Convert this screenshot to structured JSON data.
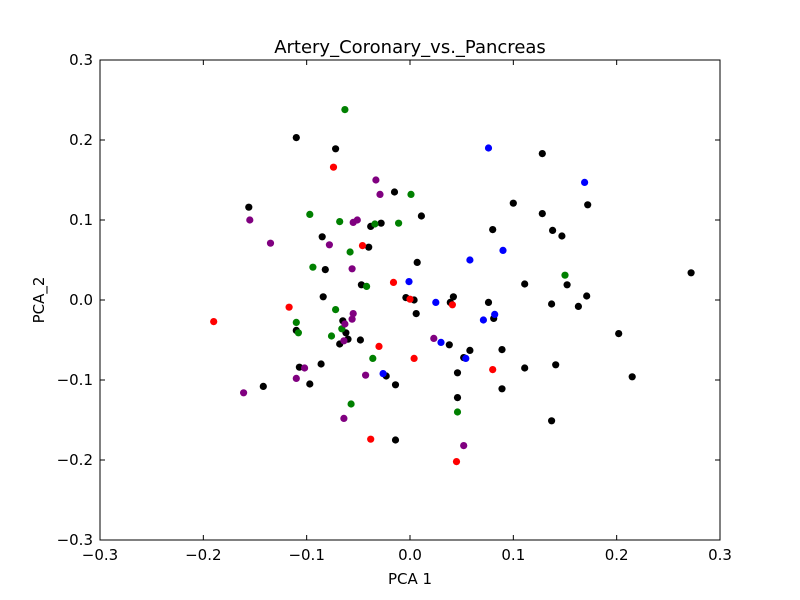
{
  "chart_data": {
    "type": "scatter",
    "title": "Artery_Coronary_vs._Pancreas",
    "xlabel": "PCA 1",
    "ylabel": "PCA_2",
    "xlim": [
      -0.3,
      0.3
    ],
    "ylim": [
      -0.3,
      0.3
    ],
    "xticks": [
      "−0.3",
      "−0.2",
      "−0.1",
      "0.0",
      "0.1",
      "0.2",
      "0.3"
    ],
    "yticks": [
      "−0.3",
      "−0.2",
      "−0.1",
      "0.0",
      "0.1",
      "0.2",
      "0.3"
    ],
    "grid": false,
    "series": [
      {
        "color": "#000000",
        "points": [
          [
            -0.11,
            0.203
          ],
          [
            -0.072,
            0.189
          ],
          [
            -0.156,
            0.116
          ],
          [
            -0.015,
            0.135
          ],
          [
            -0.038,
            0.092
          ],
          [
            -0.028,
            0.096
          ],
          [
            0.011,
            0.105
          ],
          [
            -0.085,
            0.079
          ],
          [
            -0.04,
            0.066
          ],
          [
            0.007,
            0.047
          ],
          [
            -0.082,
            0.038
          ],
          [
            -0.047,
            0.019
          ],
          [
            -0.084,
            0.004
          ],
          [
            -0.004,
            0.003
          ],
          [
            0.004,
            0.0
          ],
          [
            -0.065,
            -0.026
          ],
          [
            -0.11,
            -0.038
          ],
          [
            -0.062,
            -0.041
          ],
          [
            -0.06,
            -0.049
          ],
          [
            -0.048,
            -0.05
          ],
          [
            -0.068,
            -0.055
          ],
          [
            -0.107,
            -0.084
          ],
          [
            -0.086,
            -0.08
          ],
          [
            -0.097,
            -0.105
          ],
          [
            -0.142,
            -0.108
          ],
          [
            -0.023,
            -0.095
          ],
          [
            -0.014,
            -0.106
          ],
          [
            0.042,
            0.004
          ],
          [
            0.039,
            -0.003
          ],
          [
            0.006,
            -0.017
          ],
          [
            0.038,
            -0.056
          ],
          [
            0.058,
            -0.063
          ],
          [
            0.052,
            -0.072
          ],
          [
            0.046,
            -0.091
          ],
          [
            0.046,
            -0.122
          ],
          [
            -0.014,
            -0.175
          ],
          [
            0.128,
            0.183
          ],
          [
            0.1,
            0.121
          ],
          [
            0.128,
            0.108
          ],
          [
            0.172,
            0.119
          ],
          [
            0.08,
            0.088
          ],
          [
            0.138,
            0.087
          ],
          [
            0.147,
            0.08
          ],
          [
            0.111,
            0.02
          ],
          [
            0.152,
            0.019
          ],
          [
            0.171,
            0.005
          ],
          [
            0.137,
            -0.005
          ],
          [
            0.163,
            -0.008
          ],
          [
            0.076,
            -0.003
          ],
          [
            0.081,
            -0.023
          ],
          [
            0.089,
            -0.062
          ],
          [
            0.111,
            -0.085
          ],
          [
            0.141,
            -0.081
          ],
          [
            0.089,
            -0.111
          ],
          [
            0.137,
            -0.151
          ],
          [
            0.202,
            -0.042
          ],
          [
            0.215,
            -0.096
          ],
          [
            0.272,
            0.034
          ]
        ]
      },
      {
        "color": "#0000ff",
        "points": [
          [
            0.076,
            0.19
          ],
          [
            0.169,
            0.147
          ],
          [
            0.09,
            0.062
          ],
          [
            0.058,
            0.05
          ],
          [
            -0.001,
            0.023
          ],
          [
            0.025,
            -0.003
          ],
          [
            0.071,
            -0.025
          ],
          [
            0.082,
            -0.018
          ],
          [
            0.03,
            -0.053
          ],
          [
            0.054,
            -0.073
          ],
          [
            -0.026,
            -0.092
          ]
        ]
      },
      {
        "color": "#ff0000",
        "points": [
          [
            -0.074,
            0.166
          ],
          [
            -0.046,
            0.068
          ],
          [
            -0.016,
            0.022
          ],
          [
            0.0,
            0.001
          ],
          [
            0.041,
            -0.006
          ],
          [
            -0.117,
            -0.009
          ],
          [
            -0.19,
            -0.027
          ],
          [
            -0.03,
            -0.058
          ],
          [
            0.004,
            -0.073
          ],
          [
            0.08,
            -0.087
          ],
          [
            -0.038,
            -0.174
          ],
          [
            0.045,
            -0.202
          ]
        ]
      },
      {
        "color": "#008000",
        "points": [
          [
            -0.063,
            0.238
          ],
          [
            0.001,
            0.132
          ],
          [
            -0.097,
            0.107
          ],
          [
            -0.068,
            0.098
          ],
          [
            -0.034,
            0.095
          ],
          [
            -0.011,
            0.096
          ],
          [
            -0.058,
            0.06
          ],
          [
            -0.094,
            0.041
          ],
          [
            -0.042,
            0.017
          ],
          [
            0.15,
            0.031
          ],
          [
            -0.072,
            -0.012
          ],
          [
            -0.11,
            -0.028
          ],
          [
            -0.108,
            -0.041
          ],
          [
            -0.076,
            -0.045
          ],
          [
            -0.066,
            -0.036
          ],
          [
            -0.036,
            -0.073
          ],
          [
            -0.057,
            -0.13
          ],
          [
            0.046,
            -0.14
          ]
        ]
      },
      {
        "color": "#800080",
        "points": [
          [
            -0.033,
            0.15
          ],
          [
            -0.029,
            0.132
          ],
          [
            -0.055,
            0.097
          ],
          [
            -0.051,
            0.1
          ],
          [
            -0.155,
            0.1
          ],
          [
            -0.135,
            0.071
          ],
          [
            -0.078,
            0.069
          ],
          [
            -0.056,
            0.039
          ],
          [
            -0.055,
            -0.017
          ],
          [
            -0.056,
            -0.024
          ],
          [
            -0.063,
            -0.03
          ],
          [
            -0.064,
            -0.051
          ],
          [
            -0.102,
            -0.085
          ],
          [
            -0.11,
            -0.098
          ],
          [
            -0.043,
            -0.094
          ],
          [
            0.023,
            -0.048
          ],
          [
            -0.064,
            -0.148
          ],
          [
            -0.161,
            -0.116
          ],
          [
            0.052,
            -0.182
          ]
        ]
      }
    ]
  }
}
